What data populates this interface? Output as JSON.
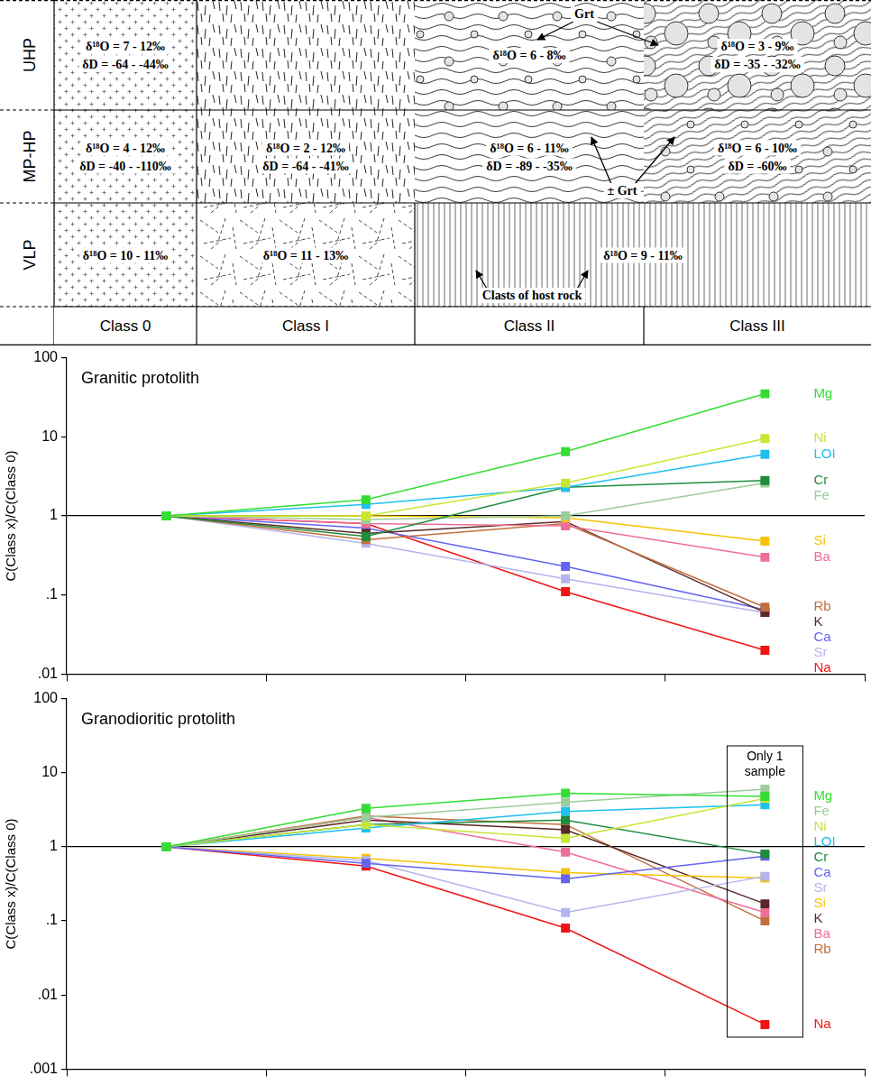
{
  "diagram": {
    "classes": [
      "Class 0",
      "Class I",
      "Class II",
      "Class III"
    ],
    "rows": [
      {
        "label": "UHP",
        "note": "Grt",
        "cells": [
          {
            "classes": [
              "Class 0"
            ],
            "lines": [
              "δ¹⁸O = 7 - 12‰",
              "δD = -64 - -44‰"
            ]
          },
          {
            "classes": [
              "Class I"
            ],
            "lines": []
          },
          {
            "classes": [
              "Class II"
            ],
            "lines": [
              "δ¹⁸O = 6 - 8‰"
            ]
          },
          {
            "classes": [
              "Class III"
            ],
            "lines": [
              "δ¹⁸O = 3 - 9‰",
              "δD = -35 - -32‰"
            ]
          }
        ]
      },
      {
        "label": "MP-HP",
        "note": "± Grt",
        "cells": [
          {
            "classes": [
              "Class 0"
            ],
            "lines": [
              "δ¹⁸O = 4 - 12‰",
              "δD = -40 - -110‰"
            ]
          },
          {
            "classes": [
              "Class I"
            ],
            "lines": [
              "δ¹⁸O = 2 - 12‰",
              "δD = -64 - -41‰"
            ]
          },
          {
            "classes": [
              "Class II"
            ],
            "lines": [
              "δ¹⁸O = 6 - 11‰",
              "δD = -89 - -35‰"
            ]
          },
          {
            "classes": [
              "Class III"
            ],
            "lines": [
              "δ¹⁸O = 6 - 10‰",
              "δD = -60‰"
            ]
          }
        ]
      },
      {
        "label": "VLP",
        "note": "Clasts of host rock",
        "cells": [
          {
            "classes": [
              "Class 0"
            ],
            "lines": [
              "δ¹⁸O = 10 - 11‰"
            ]
          },
          {
            "classes": [
              "Class I"
            ],
            "lines": [
              "δ¹⁸O = 11 - 13‰"
            ]
          },
          {
            "classes": [
              "Class II",
              "Class III"
            ],
            "lines": [
              "δ¹⁸O = 9 - 11‰"
            ]
          }
        ]
      }
    ]
  },
  "chart_data": [
    {
      "type": "line",
      "title": "Granitic protolith",
      "y_label": "C(Class x)/C(Class 0)",
      "categories": [
        "Class 0",
        "Class I",
        "Class II",
        "Class III"
      ],
      "log": "y",
      "ylim": [
        0.01,
        100
      ],
      "yticks": [
        {
          "value": 0.01,
          "label": ".01"
        },
        {
          "value": 0.1,
          "label": ".1"
        },
        1,
        10,
        100
      ],
      "hline": 1,
      "grid": false,
      "legend": "right",
      "tick_labels": "y",
      "marker": "square",
      "series": [
        {
          "name": "Mg",
          "color": "#33dd33",
          "values": [
            1,
            1.6,
            6.5,
            35
          ]
        },
        {
          "name": "Ni",
          "color": "#c8e632",
          "values": [
            1,
            1.0,
            2.6,
            9.5
          ]
        },
        {
          "name": "LOI",
          "color": "#1ec0f0",
          "values": [
            1,
            1.4,
            2.3,
            6
          ]
        },
        {
          "name": "Cr",
          "color": "#1e8c3c",
          "values": [
            1,
            0.55,
            2.3,
            2.8
          ]
        },
        {
          "name": "Fe",
          "color": "#9acd9a",
          "values": [
            1,
            0.9,
            1.0,
            2.6
          ]
        },
        {
          "name": "Si",
          "color": "#f5c400",
          "values": [
            1,
            1.0,
            0.95,
            0.48
          ]
        },
        {
          "name": "Ba",
          "color": "#ee6f96",
          "values": [
            1,
            0.8,
            0.75,
            0.3
          ]
        },
        {
          "name": "Rb",
          "color": "#c0703c",
          "values": [
            1,
            0.5,
            0.8,
            0.07
          ]
        },
        {
          "name": "K",
          "color": "#5a2828",
          "values": [
            1,
            0.6,
            0.85,
            0.06
          ]
        },
        {
          "name": "Ca",
          "color": "#6464f0",
          "values": [
            1,
            0.7,
            0.23,
            0.065
          ]
        },
        {
          "name": "Sr",
          "color": "#b4b4ee",
          "values": [
            1,
            0.45,
            0.16,
            0.06
          ]
        },
        {
          "name": "Na",
          "color": "#f01414",
          "values": [
            1,
            0.8,
            0.11,
            0.02
          ]
        }
      ]
    },
    {
      "type": "line",
      "title": "Granodioritic protolith",
      "y_label": "C(Class x)/C(Class 0)",
      "categories": [
        "Class 0",
        "Class I",
        "Class II",
        "Class III"
      ],
      "log": "y",
      "ylim": [
        0.001,
        100
      ],
      "yticks": [
        {
          "value": 0.001,
          "label": ".001"
        },
        {
          "value": 0.01,
          "label": ".01"
        },
        {
          "value": 0.1,
          "label": ".1"
        },
        1,
        10,
        100
      ],
      "hline": 1,
      "grid": false,
      "legend": "right",
      "tick_labels": "y",
      "marker": "square",
      "annotation": {
        "text": "Only 1 sample",
        "x": "Class III"
      },
      "series": [
        {
          "name": "Mg",
          "color": "#33dd33",
          "values": [
            1,
            3.3,
            5.3,
            4.8
          ]
        },
        {
          "name": "Fe",
          "color": "#9acd9a",
          "values": [
            1,
            2.5,
            4.0,
            6.0
          ]
        },
        {
          "name": "Ni",
          "color": "#c8e632",
          "values": [
            1,
            2.0,
            1.3,
            4.5
          ]
        },
        {
          "name": "LOI",
          "color": "#1ec0f0",
          "values": [
            1,
            1.8,
            3.0,
            3.7
          ]
        },
        {
          "name": "Cr",
          "color": "#1e8c3c",
          "values": [
            1,
            2.0,
            2.3,
            0.8
          ]
        },
        {
          "name": "Ca",
          "color": "#6464f0",
          "values": [
            1,
            0.6,
            0.37,
            0.75
          ]
        },
        {
          "name": "Sr",
          "color": "#b4b4ee",
          "values": [
            1,
            0.65,
            0.13,
            0.4
          ]
        },
        {
          "name": "Si",
          "color": "#f5c400",
          "values": [
            1,
            0.7,
            0.45,
            0.38
          ]
        },
        {
          "name": "K",
          "color": "#5a2828",
          "values": [
            1,
            2.3,
            1.7,
            0.17
          ]
        },
        {
          "name": "Ba",
          "color": "#ee6f96",
          "values": [
            1,
            2.5,
            0.85,
            0.13
          ]
        },
        {
          "name": "Rb",
          "color": "#c0703c",
          "values": [
            1,
            2.6,
            2.0,
            0.1
          ]
        },
        {
          "name": "Na",
          "color": "#f01414",
          "values": [
            1,
            0.55,
            0.08,
            0.004
          ]
        }
      ]
    }
  ]
}
